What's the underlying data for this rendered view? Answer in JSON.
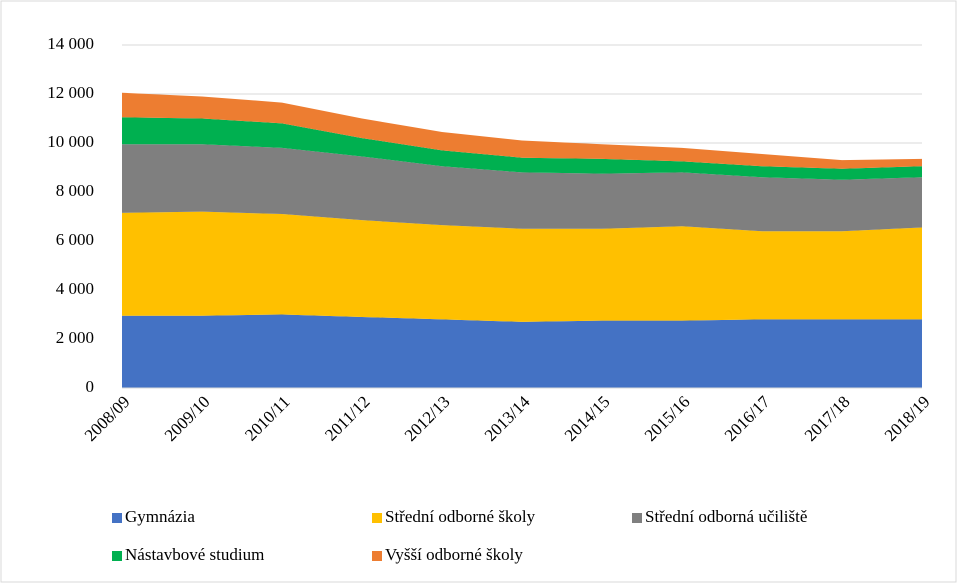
{
  "chart_data": {
    "type": "stacked_area",
    "categories": [
      "2008/09",
      "2009/10",
      "2010/11",
      "2011/12",
      "2012/13",
      "2013/14",
      "2014/15",
      "2015/16",
      "2016/17",
      "2017/18",
      "2018/19"
    ],
    "series": [
      {
        "name": "Gymnázia",
        "color": "#4472c4",
        "values": [
          2950,
          2950,
          3000,
          2900,
          2800,
          2700,
          2750,
          2750,
          2800,
          2800,
          2800
        ]
      },
      {
        "name": "Střední odborné školy",
        "color": "#ffc000",
        "values": [
          4200,
          4250,
          4100,
          3950,
          3850,
          3800,
          3750,
          3850,
          3600,
          3600,
          3750
        ]
      },
      {
        "name": "Střední odborná učiliště",
        "color": "#7f7f7f",
        "values": [
          2800,
          2750,
          2700,
          2600,
          2400,
          2300,
          2250,
          2200,
          2200,
          2100,
          2050
        ]
      },
      {
        "name": "Nástavbové studium",
        "color": "#00b050",
        "values": [
          1100,
          1050,
          1000,
          750,
          650,
          600,
          600,
          450,
          450,
          450,
          450
        ]
      },
      {
        "name": "Vyšší odborné školy",
        "color": "#ed7d31",
        "values": [
          1000,
          900,
          850,
          800,
          750,
          700,
          600,
          550,
          500,
          350,
          300
        ]
      }
    ],
    "ylim": [
      0,
      14000
    ],
    "yticks": [
      0,
      {
        "value": 2000,
        "label": "2 000"
      },
      {
        "value": 4000,
        "label": "4 000"
      },
      {
        "value": 6000,
        "label": "6 000"
      },
      {
        "value": 8000,
        "label": "8 000"
      },
      {
        "value": 10000,
        "label": "10 000"
      },
      {
        "value": 12000,
        "label": "12 000"
      },
      {
        "value": 14000,
        "label": "14 000"
      }
    ],
    "grid": true,
    "legend": "bottom"
  }
}
